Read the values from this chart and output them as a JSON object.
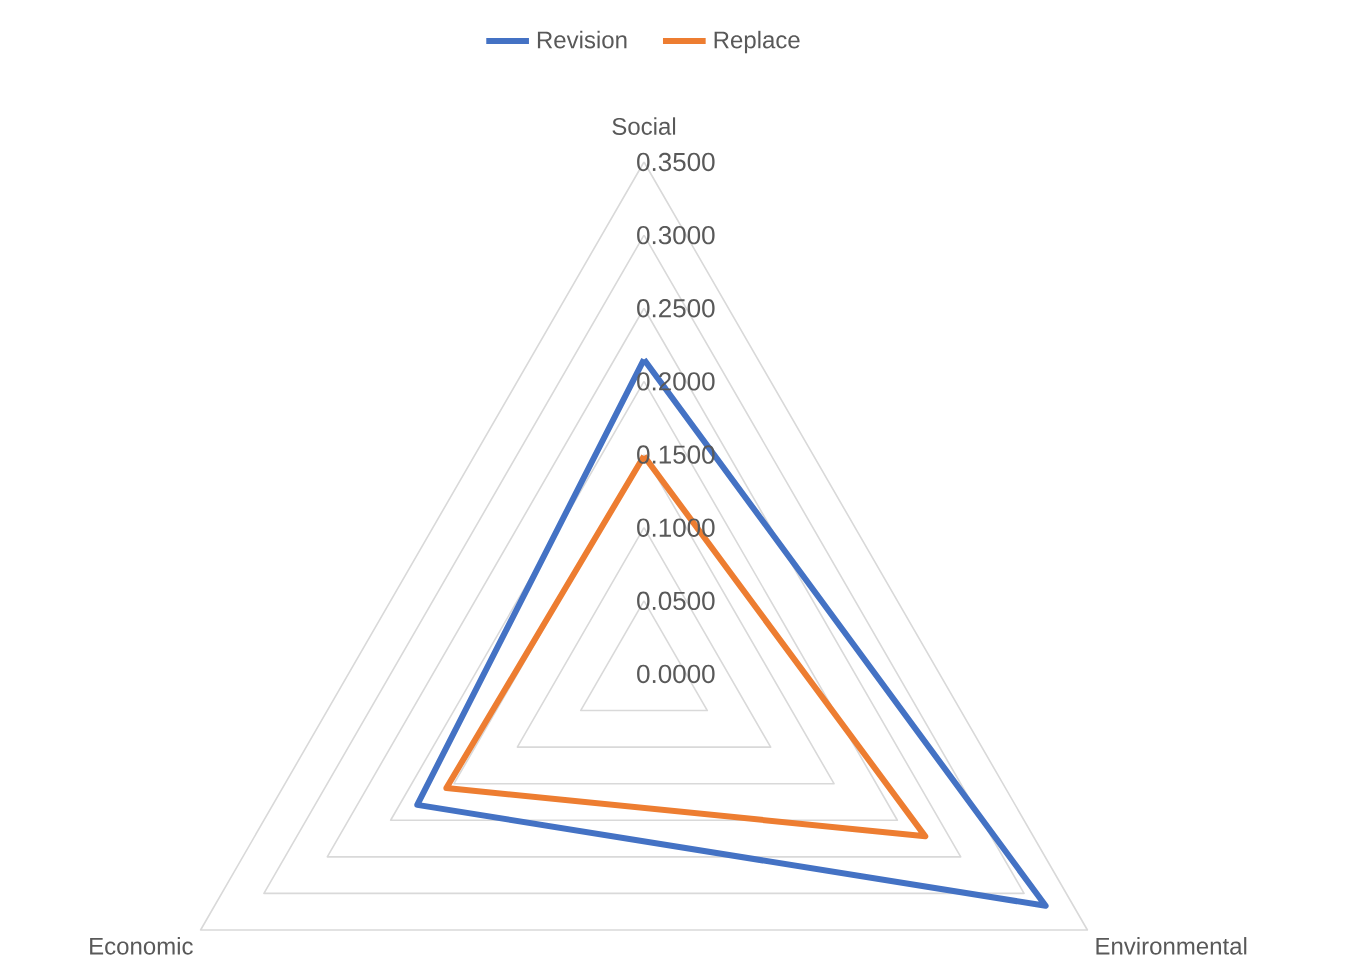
{
  "chart_data": {
    "type": "radar",
    "categories": [
      "Social",
      "Environmental",
      "Economic"
    ],
    "series": [
      {
        "name": "Revision",
        "color": "#4472c4",
        "values": [
          0.215,
          0.317,
          0.179
        ]
      },
      {
        "name": "Replace",
        "color": "#ed7d31",
        "values": [
          0.149,
          0.222,
          0.156
        ]
      }
    ],
    "ylim": [
      0,
      0.35
    ],
    "yticks": [
      {
        "value": 0,
        "label": "0.0000"
      },
      {
        "value": 0.05,
        "label": "0.0500"
      },
      {
        "value": 0.1,
        "label": "0.1000"
      },
      {
        "value": 0.15,
        "label": "0.1500"
      },
      {
        "value": 0.2,
        "label": "0.2000"
      },
      {
        "value": 0.25,
        "label": "0.2500"
      },
      {
        "value": 0.3,
        "label": "0.3000"
      },
      {
        "value": 0.35,
        "label": "0.3500"
      }
    ],
    "grid": true,
    "legend": "top"
  }
}
